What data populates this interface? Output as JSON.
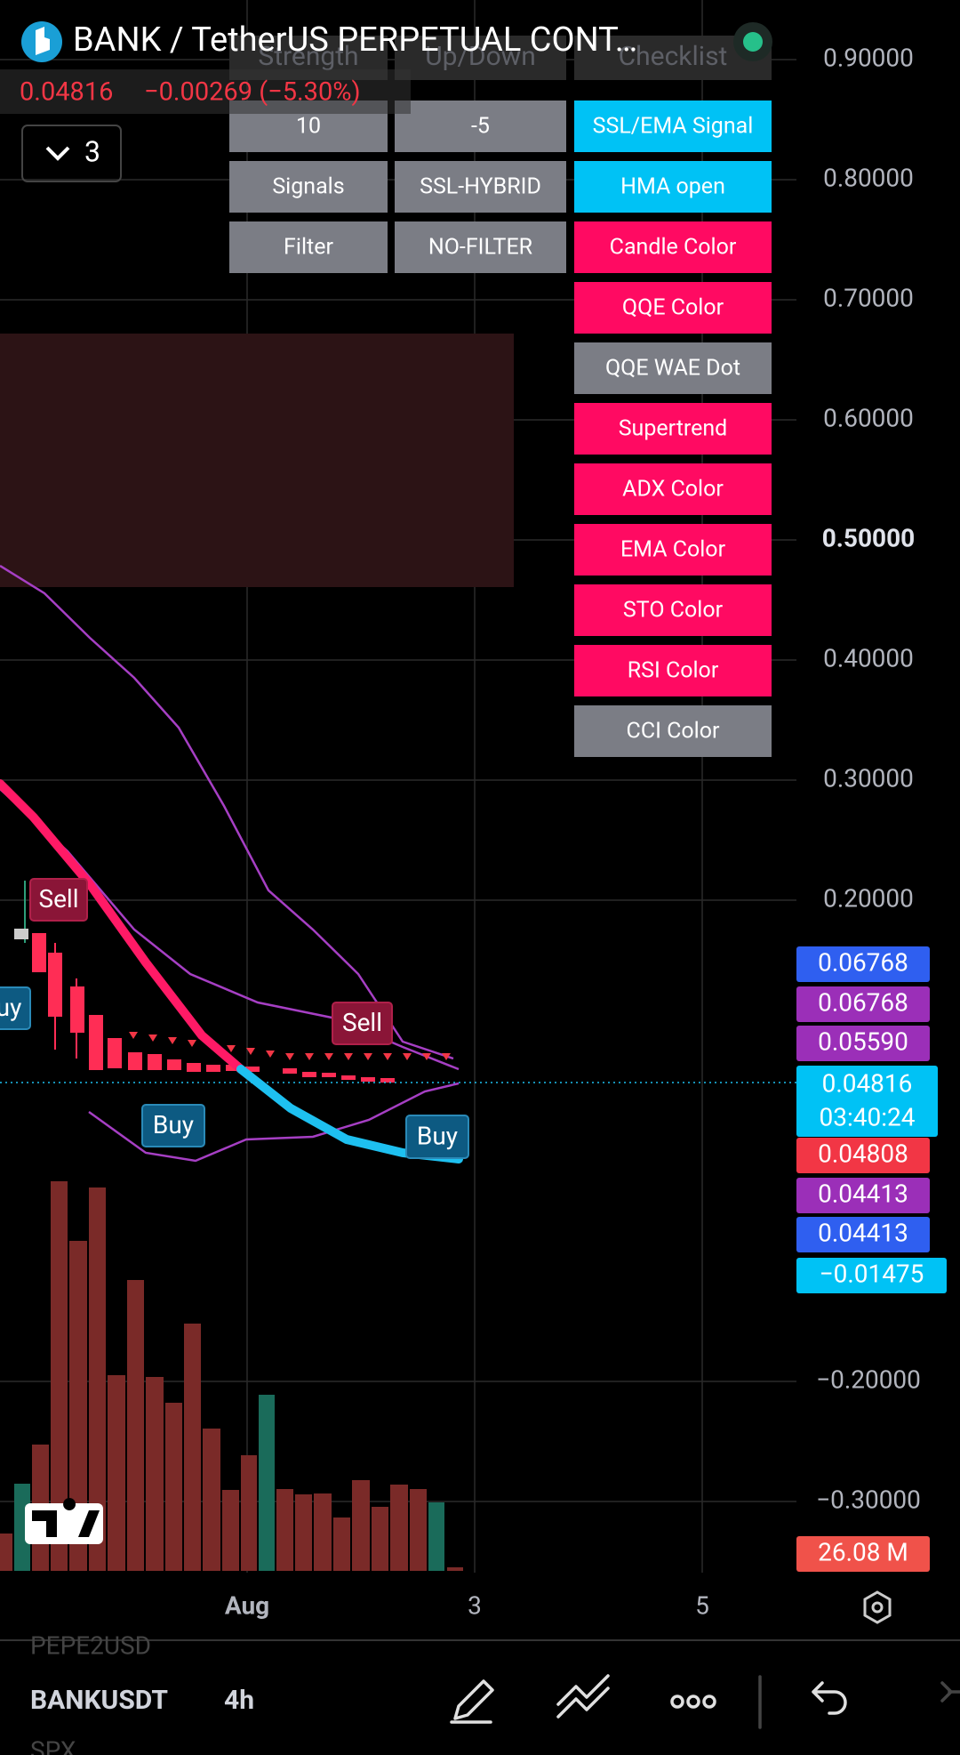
{
  "header": {
    "title": "BANK / TetherUS PERPETUAL CONT…",
    "price": "0.04816",
    "change": "−0.00269 (−5.30%)",
    "indicator_count": "3"
  },
  "table": {
    "headers": [
      "Strength",
      "Up/Down",
      "Checklist"
    ],
    "rows": [
      [
        "10",
        "-5"
      ],
      [
        "Signals",
        "SSL-HYBRID"
      ],
      [
        "Filter",
        "NO-FILTER"
      ]
    ]
  },
  "checklist": [
    {
      "label": "SSL/EMA Signal",
      "color": "#00c2f5"
    },
    {
      "label": "HMA open",
      "color": "#00c2f5"
    },
    {
      "label": "Candle Color",
      "color": "#ff0a62"
    },
    {
      "label": "QQE Color",
      "color": "#ff0a62"
    },
    {
      "label": "QQE WAE Dot",
      "color": "#7b7d85"
    },
    {
      "label": "Supertrend",
      "color": "#ff0a62"
    },
    {
      "label": "ADX Color",
      "color": "#ff0a62"
    },
    {
      "label": "EMA Color",
      "color": "#ff0a62"
    },
    {
      "label": "STO Color",
      "color": "#ff0a62"
    },
    {
      "label": "RSI Color",
      "color": "#ff0a62"
    },
    {
      "label": "CCI Color",
      "color": "#7b7d85"
    }
  ],
  "price_axis": [
    "0.90000",
    "0.80000",
    "0.70000",
    "0.60000",
    "0.50000",
    "0.40000",
    "0.30000",
    "0.20000",
    "−0.20000",
    "−0.30000"
  ],
  "price_badges": [
    {
      "label": "0.06768",
      "color": "#2f5ff0"
    },
    {
      "label": "0.06768",
      "color": "#9b2fb8"
    },
    {
      "label": "0.05590",
      "color": "#9b2fb8"
    },
    {
      "label": "0.04816",
      "sublabel": "03:40:24",
      "color": "#00c2f5"
    },
    {
      "label": "0.04808",
      "color": "#f23645"
    },
    {
      "label": "0.04413",
      "color": "#9b2fb8"
    },
    {
      "label": "0.04413",
      "color": "#2f5ff0"
    },
    {
      "label": "−0.01475",
      "color": "#00c2f5"
    },
    {
      "label": "26.08 M",
      "color": "#f0524a"
    }
  ],
  "signals": [
    "Sell",
    "uy",
    "Sell",
    "Buy",
    "Buy"
  ],
  "time_axis": [
    "Aug",
    "3",
    "5"
  ],
  "symbols": [
    "PEPE2USD",
    "SPX"
  ],
  "toolbar": {
    "symbol": "BANKUSDT",
    "interval": "4h"
  }
}
